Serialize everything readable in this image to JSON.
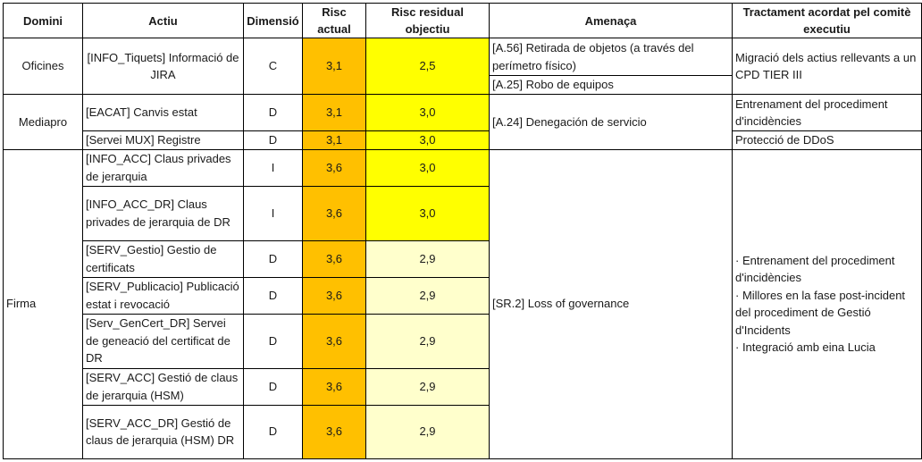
{
  "headers": {
    "domini": "Domini",
    "actiu": "Actiu",
    "dimensio": "Dimensió",
    "risc_actual": "Risc actual",
    "risc_residual": "Risc residual objectiu",
    "amenaca": "Amenaça",
    "tractament": "Tractament acordat pel comitè executiu"
  },
  "colors": {
    "orange": "#ffc000",
    "yellow": "#ffff00",
    "light_yellow": "#ffffcc"
  },
  "groups": {
    "oficines": {
      "domini": "Oficines",
      "actiu": "[INFO_Tiquets] Informació de JIRA",
      "dimensio": "C",
      "risc_actual": "3,1",
      "risc_residual": "2,5",
      "amenaca_1": "[A.56] Retirada de objetos (a través del perímetro físico)",
      "amenaca_2": "[A.25] Robo de equipos",
      "tractament": "Migració dels actius rellevants a un CPD TIER III"
    },
    "mediapro": {
      "domini": "Mediapro",
      "amenaca": "[A.24] Denegación de servicio",
      "rows": [
        {
          "actiu": "[EACAT] Canvis estat",
          "dimensio": "D",
          "risc_actual": "3,1",
          "risc_residual": "3,0",
          "tractament": "Entrenament del procediment d'incidències"
        },
        {
          "actiu": "[Servei MUX] Registre",
          "dimensio": "D",
          "risc_actual": "3,1",
          "risc_residual": "3,0",
          "tractament": "Protecció de DDoS"
        }
      ]
    },
    "firma": {
      "domini": "Firma",
      "amenaca": "[SR.2] Loss of governance",
      "tractament": [
        "· Entrenament del procediment d'incidències",
        "· Millores en la fase post-incident del procediment de Gestió d'Incidents",
        "· Integració amb eina Lucia"
      ],
      "rows": [
        {
          "actiu": "[INFO_ACC] Claus privades de jerarquia",
          "dimensio": "I",
          "risc_actual": "3,6",
          "risc_residual": "3,0"
        },
        {
          "actiu": "[INFO_ACC_DR] Claus privades de jerarquia de DR",
          "dimensio": "I",
          "risc_actual": "3,6",
          "risc_residual": "3,0"
        },
        {
          "actiu": "[SERV_Gestio] Gestio de certificats",
          "dimensio": "D",
          "risc_actual": "3,6",
          "risc_residual": "2,9"
        },
        {
          "actiu": "[SERV_Publicacio] Publicació estat i revocació",
          "dimensio": "D",
          "risc_actual": "3,6",
          "risc_residual": "2,9"
        },
        {
          "actiu": "[Serv_GenCert_DR] Servei de geneació del certificat de DR",
          "dimensio": "D",
          "risc_actual": "3,6",
          "risc_residual": "2,9"
        },
        {
          "actiu": "[SERV_ACC] Gestió de claus de jerarquia (HSM)",
          "dimensio": "D",
          "risc_actual": "3,6",
          "risc_residual": "2,9"
        },
        {
          "actiu": "[SERV_ACC_DR] Gestió de claus de jerarquia (HSM) DR",
          "dimensio": "D",
          "risc_actual": "3,6",
          "risc_residual": "2,9"
        }
      ]
    }
  }
}
